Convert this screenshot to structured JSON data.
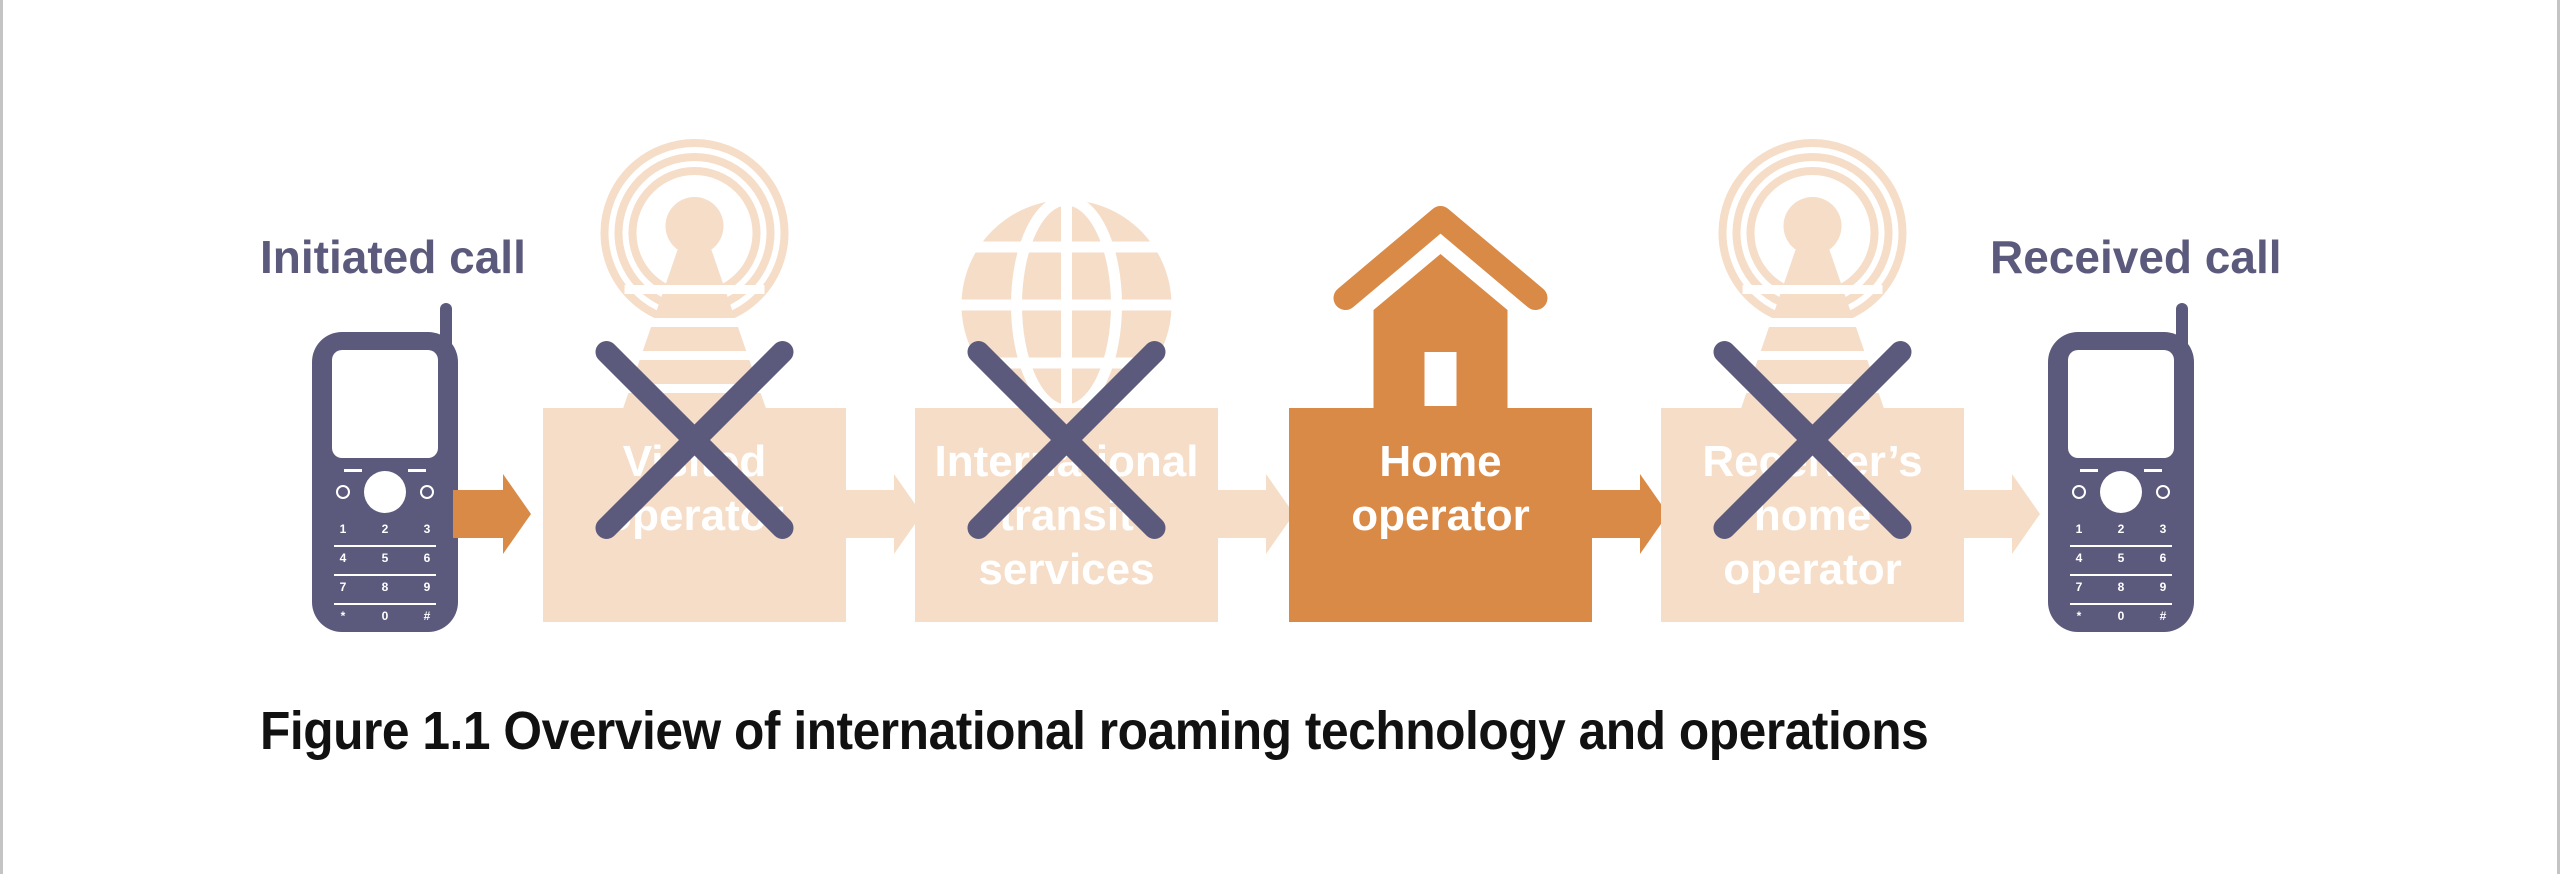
{
  "colors": {
    "accent": "#d98a47",
    "faded": "#f5ddc8",
    "phone": "#5c5a7c",
    "cross": "#5c5a7c"
  },
  "labels": {
    "initiated_call": "Initiated call",
    "received_call": "Received call"
  },
  "nodes": [
    {
      "icon": "tower-icon",
      "lines": [
        "Visited",
        "operator"
      ],
      "active": false,
      "crossed": true
    },
    {
      "icon": "globe-icon",
      "lines": [
        "International",
        "transit",
        "services"
      ],
      "active": false,
      "crossed": true
    },
    {
      "icon": "house-icon",
      "lines": [
        "Home",
        "operator"
      ],
      "active": true,
      "crossed": false
    },
    {
      "icon": "tower-icon",
      "lines": [
        "Receiver’s",
        "home",
        "operator"
      ],
      "active": false,
      "crossed": true
    }
  ],
  "phone_keys": [
    "1",
    "2",
    "3",
    "4",
    "5",
    "6",
    "7",
    "8",
    "9",
    "*",
    "0",
    "#"
  ],
  "caption": "Figure 1.1 Overview of international roaming technology and operations"
}
